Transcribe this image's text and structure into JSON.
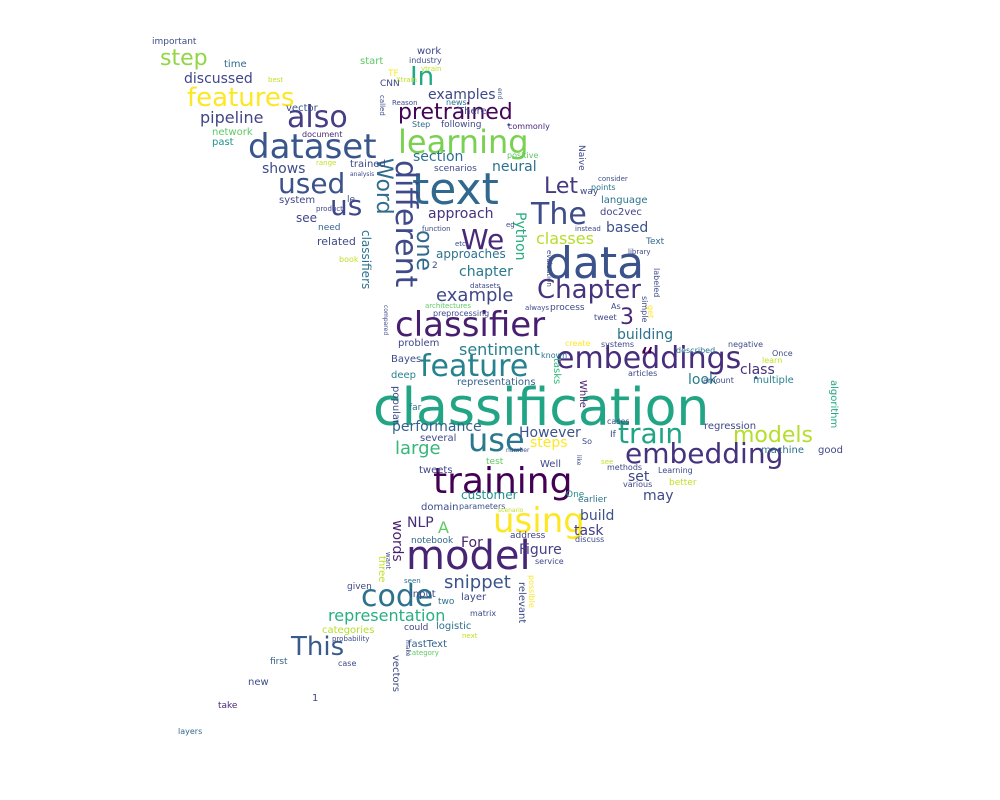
{
  "words": [
    {
      "text": "classification",
      "color": "#21a585"
    },
    {
      "text": "data",
      "color": "#3b528b"
    },
    {
      "text": "text",
      "color": "#31688e"
    },
    {
      "text": "classifier",
      "color": "#481f70"
    },
    {
      "text": "training",
      "color": "#440154"
    },
    {
      "text": "model",
      "color": "#482475"
    },
    {
      "text": "dataset",
      "color": "#39568c"
    },
    {
      "text": "using",
      "color": "#fde725"
    },
    {
      "text": "learning",
      "color": "#7ad151"
    },
    {
      "text": "different",
      "color": "#3e4a89"
    },
    {
      "text": "embeddings",
      "color": "#472d7b"
    },
    {
      "text": "feature",
      "color": "#26828e"
    },
    {
      "text": "use",
      "color": "#2a788e"
    },
    {
      "text": "train",
      "color": "#20a486"
    },
    {
      "text": "embedding",
      "color": "#46337e"
    },
    {
      "text": "The",
      "color": "#3e4c8a"
    },
    {
      "text": "Chapter",
      "color": "#46337e"
    },
    {
      "text": "also",
      "color": "#433e85"
    },
    {
      "text": "features",
      "color": "#fde725"
    },
    {
      "text": "code",
      "color": "#2c728e"
    },
    {
      "text": "used",
      "color": "#3b528b"
    },
    {
      "text": "models",
      "color": "#b5de2b"
    },
    {
      "text": "We",
      "color": "#482878"
    },
    {
      "text": "us",
      "color": "#3e4989"
    },
    {
      "text": "Word",
      "color": "#2f6c8e"
    },
    {
      "text": "pretrained",
      "color": "#450457"
    },
    {
      "text": "This",
      "color": "#375b8d"
    },
    {
      "text": "In",
      "color": "#22a884"
    },
    {
      "text": "step",
      "color": "#90d743"
    },
    {
      "text": "Let",
      "color": "#443a83"
    },
    {
      "text": "one",
      "color": "#31688e"
    },
    {
      "text": "example",
      "color": "#3f4788"
    },
    {
      "text": "sentiment",
      "color": "#277f8e"
    },
    {
      "text": "snippet",
      "color": "#3a548c"
    },
    {
      "text": "representation",
      "color": "#28ae80"
    },
    {
      "text": "Figure",
      "color": "#424086"
    },
    {
      "text": "performance",
      "color": "#33638d"
    },
    {
      "text": "large",
      "color": "#35b779"
    },
    {
      "text": "However",
      "color": "#3b528b"
    },
    {
      "text": "pipeline",
      "color": "#414487"
    },
    {
      "text": "discussed",
      "color": "#3f4788"
    },
    {
      "text": "section",
      "color": "#2c728e"
    },
    {
      "text": "approach",
      "color": "#46327e"
    },
    {
      "text": "classes",
      "color": "#b5de2b"
    },
    {
      "text": "chapter",
      "color": "#2a788e"
    },
    {
      "text": "building",
      "color": "#2c728e"
    },
    {
      "text": "class",
      "color": "#46327e"
    },
    {
      "text": "build",
      "color": "#3b528b"
    },
    {
      "text": "customer",
      "color": "#21918c"
    },
    {
      "text": "task",
      "color": "#433e85"
    },
    {
      "text": "words",
      "color": "#481f70"
    },
    {
      "text": "steps",
      "color": "#fde725"
    },
    {
      "text": "neural",
      "color": "#2d708e"
    },
    {
      "text": "examples",
      "color": "#3f4788"
    },
    {
      "text": "shows",
      "color": "#3e4c8a"
    },
    {
      "text": "based",
      "color": "#3b528b"
    },
    {
      "text": "look",
      "color": "#287c8e"
    },
    {
      "text": "may",
      "color": "#3e4989"
    },
    {
      "text": "set",
      "color": "#3f4788"
    },
    {
      "text": "NLP",
      "color": "#472d7b"
    },
    {
      "text": "A",
      "color": "#5ec962"
    },
    {
      "text": "For",
      "color": "#482475"
    },
    {
      "text": "3",
      "color": "#482878"
    },
    {
      "text": "Python",
      "color": "#27ad81"
    },
    {
      "text": "classifiers",
      "color": "#2c728e"
    },
    {
      "text": "approaches",
      "color": "#2c728e"
    },
    {
      "text": "“",
      "color": "#440154"
    },
    {
      "text": "see",
      "color": "#3f4788"
    },
    {
      "text": "related",
      "color": "#3e4a89"
    },
    {
      "text": "time",
      "color": "#31688e"
    },
    {
      "text": "vector",
      "color": "#3b528b"
    },
    {
      "text": "network",
      "color": "#5ec962"
    },
    {
      "text": "past",
      "color": "#21918c"
    },
    {
      "text": "system",
      "color": "#3e4989"
    },
    {
      "text": "need",
      "color": "#33638d"
    },
    {
      "text": "trained",
      "color": "#3f4788"
    },
    {
      "text": "scenarios",
      "color": "#3e4c8a"
    },
    {
      "text": "language",
      "color": "#2c728e"
    },
    {
      "text": "doc2vec",
      "color": "#414487"
    },
    {
      "text": "multiple",
      "color": "#26828e"
    },
    {
      "text": "regression",
      "color": "#404688"
    },
    {
      "text": "algorithm",
      "color": "#22a884"
    },
    {
      "text": "machine",
      "color": "#2d708e"
    },
    {
      "text": "good",
      "color": "#3f4788"
    },
    {
      "text": "negative",
      "color": "#3e4c8a"
    },
    {
      "text": "Once",
      "color": "#3e4989"
    },
    {
      "text": "learn",
      "color": "#c2df23"
    },
    {
      "text": "described",
      "color": "#2a788e"
    },
    {
      "text": "amount",
      "color": "#3e4c8a"
    },
    {
      "text": "articles",
      "color": "#3f4788"
    },
    {
      "text": "tasks",
      "color": "#35b779"
    },
    {
      "text": "known",
      "color": "#2c728e"
    },
    {
      "text": "systems",
      "color": "#3e4989"
    },
    {
      "text": "create",
      "color": "#fde725"
    },
    {
      "text": "Bayes",
      "color": "#3e4c8a"
    },
    {
      "text": "problem",
      "color": "#3f4788"
    },
    {
      "text": "deep",
      "color": "#26828e"
    },
    {
      "text": "representations",
      "color": "#33638d"
    },
    {
      "text": "popular",
      "color": "#3e4989"
    },
    {
      "text": "far",
      "color": "#2c728e"
    },
    {
      "text": "While",
      "color": "#481f70"
    },
    {
      "text": "several",
      "color": "#3e4c8a"
    },
    {
      "text": "tweets",
      "color": "#3f4788"
    },
    {
      "text": "test",
      "color": "#5ec962"
    },
    {
      "text": "Well",
      "color": "#3e4989"
    },
    {
      "text": "One",
      "color": "#21918c"
    },
    {
      "text": "earlier",
      "color": "#2c728e"
    },
    {
      "text": "domain",
      "color": "#3e4c8a"
    },
    {
      "text": "parameters",
      "color": "#3b528b"
    },
    {
      "text": "notebook",
      "color": "#31688e"
    },
    {
      "text": "address",
      "color": "#414487"
    },
    {
      "text": "discuss",
      "color": "#3e4989"
    },
    {
      "text": "service",
      "color": "#3f4788"
    },
    {
      "text": "input",
      "color": "#3e4c8a"
    },
    {
      "text": "two",
      "color": "#2c728e"
    },
    {
      "text": "layer",
      "color": "#3f4788"
    },
    {
      "text": "logistic",
      "color": "#2c728e"
    },
    {
      "text": "matrix",
      "color": "#3e4989"
    },
    {
      "text": "could",
      "color": "#3f4788"
    },
    {
      "text": "fastText",
      "color": "#33638d"
    },
    {
      "text": "vectors",
      "color": "#3e4989"
    },
    {
      "text": "categories",
      "color": "#b5de2b"
    },
    {
      "text": "probability",
      "color": "#3e4c8a"
    },
    {
      "text": "next",
      "color": "#c2df23"
    },
    {
      "text": "category",
      "color": "#5ec962"
    },
    {
      "text": "case",
      "color": "#3e4989"
    },
    {
      "text": "first",
      "color": "#33638d"
    },
    {
      "text": "new",
      "color": "#3e4c8a"
    },
    {
      "text": "1",
      "color": "#3f4788"
    },
    {
      "text": "take",
      "color": "#482878"
    },
    {
      "text": "layers",
      "color": "#31688e"
    },
    {
      "text": "given",
      "color": "#3e4989"
    },
    {
      "text": "seen",
      "color": "#2c728e"
    },
    {
      "text": "relevant",
      "color": "#3e4c8a"
    },
    {
      "text": "possible",
      "color": "#fde725"
    },
    {
      "text": "important",
      "color": "#3e4c8a"
    },
    {
      "text": "best",
      "color": "#c2df23"
    },
    {
      "text": "start",
      "color": "#5ec962"
    },
    {
      "text": "CNN",
      "color": "#3e4989"
    },
    {
      "text": "work",
      "color": "#3f4788"
    },
    {
      "text": "industry",
      "color": "#3e4c8a"
    },
    {
      "text": "There",
      "color": "#3f4788"
    },
    {
      "text": "news",
      "color": "#2c728e"
    },
    {
      "text": "Reason",
      "color": "#3e4c8a"
    },
    {
      "text": "Step",
      "color": "#31688e"
    },
    {
      "text": "following",
      "color": "#3e4989"
    },
    {
      "text": "commonly",
      "color": "#482878"
    },
    {
      "text": "positive",
      "color": "#5ec962"
    },
    {
      "text": "Naive",
      "color": "#3e4c8a"
    },
    {
      "text": "way",
      "color": "#3f4788"
    },
    {
      "text": "points",
      "color": "#2c728e"
    },
    {
      "text": "consider",
      "color": "#3e4c8a"
    },
    {
      "text": "instead",
      "color": "#3e4989"
    },
    {
      "text": "library",
      "color": "#3f4788"
    },
    {
      "text": "Text",
      "color": "#31688e"
    },
    {
      "text": "labeled",
      "color": "#3e4c8a"
    },
    {
      "text": "simple",
      "color": "#3e4989"
    },
    {
      "text": "tweet",
      "color": "#3f4788"
    },
    {
      "text": "always",
      "color": "#3e4c8a"
    },
    {
      "text": "evaluation",
      "color": "#3e4989"
    },
    {
      "text": "datasets",
      "color": "#3f4788"
    },
    {
      "text": "architectures",
      "color": "#5ec962"
    },
    {
      "text": "preprocessing",
      "color": "#3e4c8a"
    },
    {
      "text": "compared",
      "color": "#3e4989"
    },
    {
      "text": "process",
      "color": "#3f4788"
    },
    {
      "text": "document",
      "color": "#482878"
    },
    {
      "text": "called",
      "color": "#3e4c8a"
    },
    {
      "text": "range",
      "color": "#c2df23"
    },
    {
      "text": "analysis",
      "color": "#3e4989"
    },
    {
      "text": "product",
      "color": "#3f4788"
    },
    {
      "text": "function",
      "color": "#3e4c8a"
    },
    {
      "text": "etc",
      "color": "#3e4989"
    },
    {
      "text": "eg",
      "color": "#3f4788"
    },
    {
      "text": "book",
      "color": "#c2df23"
    },
    {
      "text": "end",
      "color": "#3e4c8a"
    },
    {
      "text": "2",
      "color": "#3f4788"
    },
    {
      "text": "So",
      "color": "#3e4c8a"
    },
    {
      "text": "If",
      "color": "#3f4788"
    },
    {
      "text": "cases",
      "color": "#3e4989"
    },
    {
      "text": "number",
      "color": "#3e4c8a"
    },
    {
      "text": "methods",
      "color": "#3f4788"
    },
    {
      "text": "various",
      "color": "#3e4989"
    },
    {
      "text": "Learning",
      "color": "#3e4c8a"
    },
    {
      "text": "better",
      "color": "#c2df23"
    },
    {
      "text": "want",
      "color": "#3e4989"
    },
    {
      "text": "make",
      "color": "#3f4788"
    },
    {
      "text": "le",
      "color": "#3e4c8a"
    },
    {
      "text": "three",
      "color": "#c2df23"
    },
    {
      "text": "get",
      "color": "#fde725"
    },
    {
      "text": "ytrain",
      "color": "#c2df23"
    },
    {
      "text": "Xtrain",
      "color": "#c2df23"
    },
    {
      "text": "scenario",
      "color": "#c2df23"
    },
    {
      "text": "see",
      "color": "#c2df23"
    },
    {
      "text": "like",
      "color": "#3e4989"
    },
    {
      "text": "As",
      "color": "#3e4c8a"
    },
    {
      "text": "TF",
      "color": "#fde725"
    },
    {
      "text": "•",
      "color": "#3e4989"
    },
    {
      "text": "•",
      "color": "#3e4989"
    }
  ]
}
